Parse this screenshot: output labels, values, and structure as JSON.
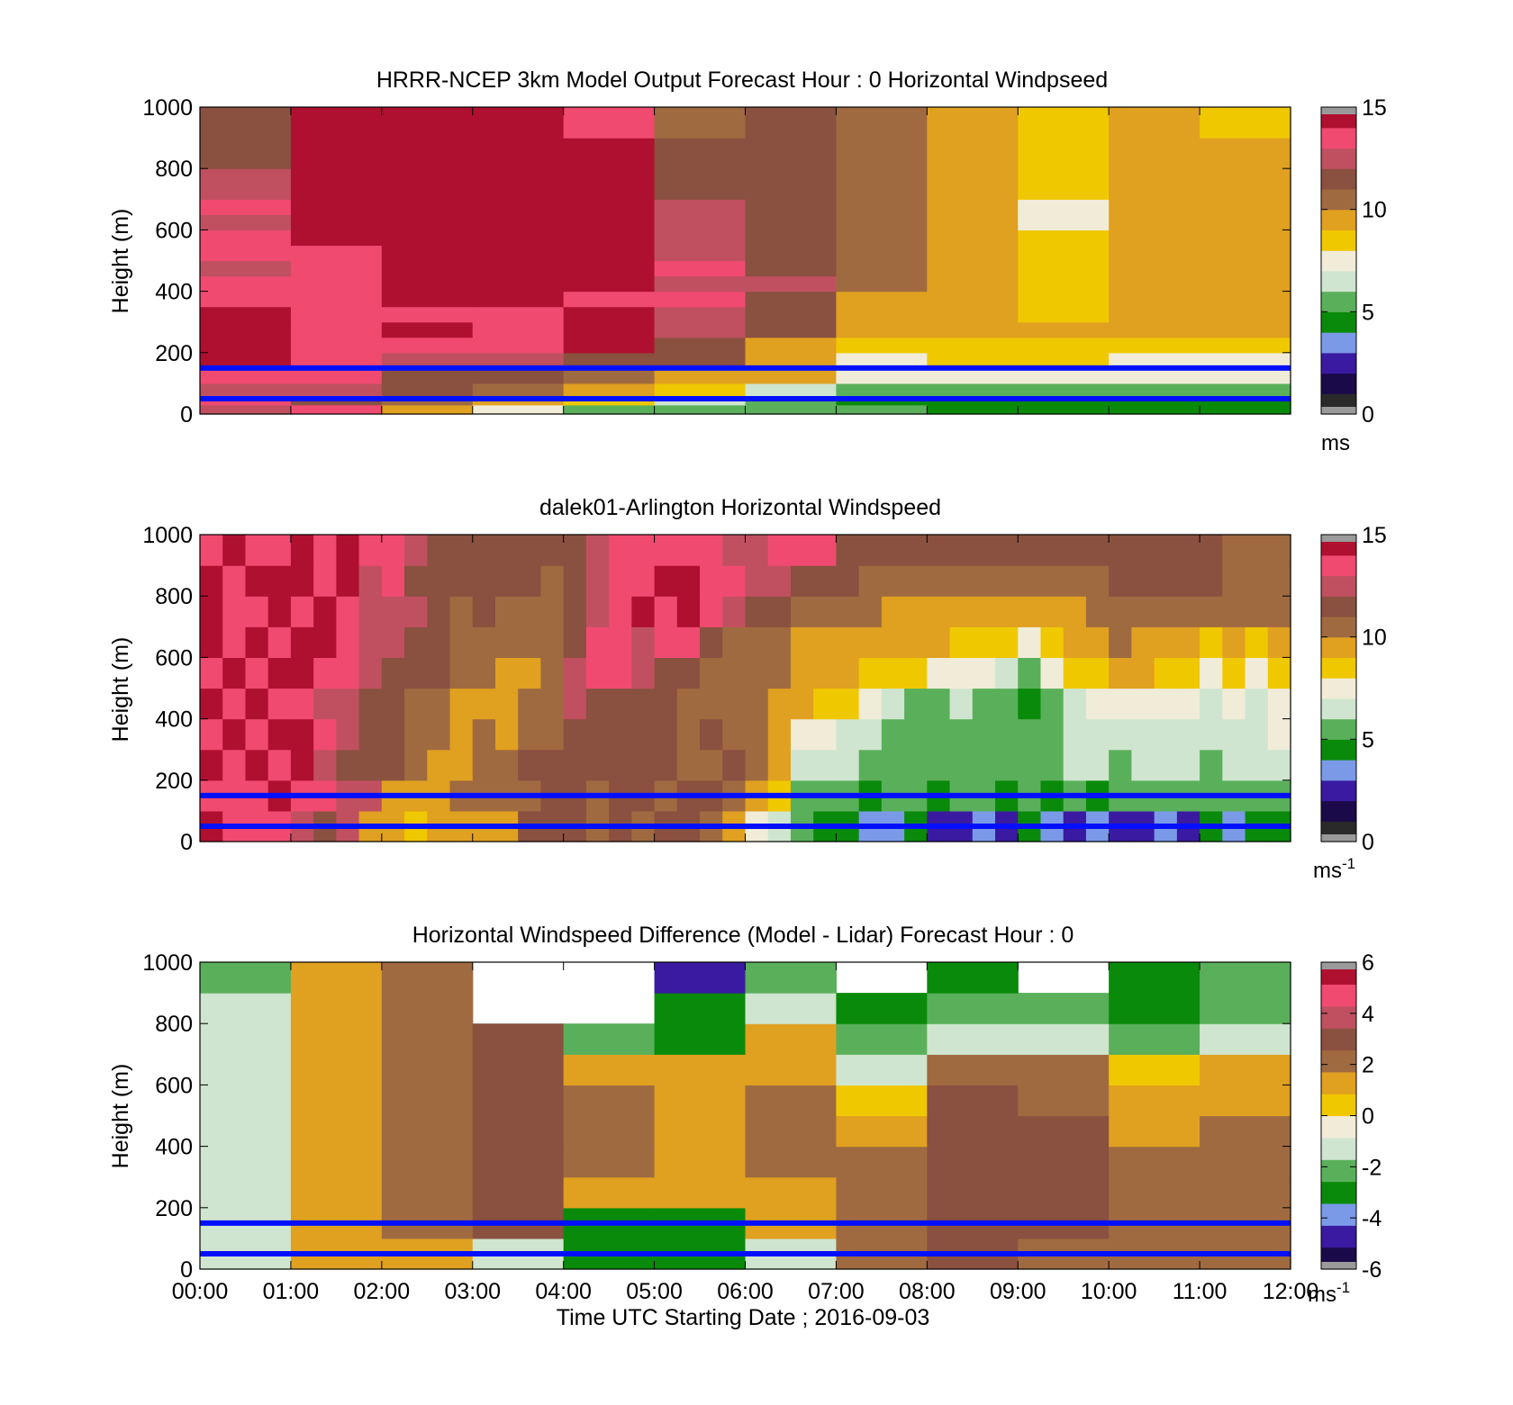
{
  "figure": {
    "xlabel": "Time UTC  Starting Date ; 2016-09-03",
    "x_ticks": [
      "00:00",
      "01:00",
      "02:00",
      "03:00",
      "04:00",
      "05:00",
      "06:00",
      "07:00",
      "08:00",
      "09:00",
      "10:00",
      "11:00",
      "12:00"
    ],
    "y_ticks": [
      "0",
      "200",
      "400",
      "600",
      "800",
      "1000"
    ],
    "ylabel": "Height (m)"
  },
  "colormap": {
    "speed": [
      "#2a2a2a",
      "#1a0a4a",
      "#3a1aa0",
      "#7a9ae8",
      "#0a8a0a",
      "#5ab05a",
      "#cfe5cf",
      "#f0ecd8",
      "#f0c800",
      "#e0a020",
      "#a06a40",
      "#8a5040",
      "#c05060",
      "#f04a70",
      "#b01030"
    ],
    "diff": [
      "#1a0a4a",
      "#3a1aa0",
      "#7a9ae8",
      "#0a8a0a",
      "#5ab05a",
      "#cfe5cf",
      "#f0ecd8",
      "#f0c800",
      "#e0a020",
      "#a06a40",
      "#8a5040",
      "#c05060",
      "#f04a70",
      "#b01030"
    ]
  },
  "chart_data": [
    {
      "type": "heatmap",
      "title": "HRRR-NCEP 3km Model Output   Forecast Hour : 0 Horizontal Windpseed",
      "ylabel": "Height (m)",
      "xlim": [
        "00:00",
        "12:00"
      ],
      "ylim": [
        0,
        1000
      ],
      "colorbar": {
        "min": 0,
        "max": 15,
        "ticks": [
          "0",
          "5",
          "10",
          "15"
        ],
        "unit": "ms",
        "unit_sup": ""
      },
      "reference_lines_m": [
        50,
        150
      ],
      "x_hours": [
        0,
        1,
        2,
        3,
        4,
        5,
        6,
        7,
        8,
        9,
        10,
        11
      ],
      "heights_m": [
        0,
        30,
        60,
        100,
        150,
        200,
        250,
        300,
        350,
        400,
        450,
        500,
        550,
        600,
        650,
        700,
        800,
        900
      ],
      "values": [
        [
          12,
          13,
          9,
          7,
          5,
          5,
          5,
          5,
          4,
          4,
          4,
          4
        ],
        [
          13,
          11,
          10,
          9,
          8,
          6,
          5,
          4,
          4,
          4,
          4,
          4
        ],
        [
          12,
          12,
          11,
          10,
          9,
          8,
          6,
          5,
          5,
          5,
          5,
          5
        ],
        [
          13,
          13,
          11,
          11,
          10,
          9,
          9,
          7,
          7,
          7,
          7,
          7
        ],
        [
          14,
          13,
          12,
          12,
          11,
          11,
          9,
          7,
          8,
          8,
          7,
          7
        ],
        [
          14,
          13,
          13,
          13,
          14,
          11,
          9,
          8,
          8,
          8,
          8,
          8
        ],
        [
          14,
          13,
          14,
          13,
          14,
          12,
          11,
          9,
          9,
          9,
          9,
          9
        ],
        [
          14,
          13,
          13,
          13,
          15,
          12,
          11,
          9,
          9,
          8,
          9,
          9
        ],
        [
          13,
          13,
          14,
          14,
          13,
          13,
          11,
          9,
          9,
          8,
          9,
          9
        ],
        [
          13,
          13,
          14,
          14,
          14,
          12,
          12,
          10,
          9,
          8,
          9,
          9
        ],
        [
          12,
          13,
          14,
          14,
          14,
          13,
          11,
          10,
          9,
          8,
          9,
          9
        ],
        [
          13,
          13,
          14,
          14,
          15,
          12,
          11,
          10,
          9,
          8,
          9,
          9
        ],
        [
          13,
          14,
          14,
          14,
          15,
          12,
          11,
          10,
          9,
          8,
          9,
          9
        ],
        [
          12,
          14,
          14,
          14,
          15,
          12,
          11,
          10,
          9,
          7,
          9,
          9
        ],
        [
          13,
          14,
          14,
          14,
          14,
          12,
          11,
          10,
          9,
          7,
          9,
          9
        ],
        [
          12,
          14,
          14,
          14,
          14,
          11,
          11,
          10,
          9,
          8,
          9,
          9
        ],
        [
          11,
          14,
          14,
          14,
          14,
          11,
          11,
          10,
          9,
          8,
          9,
          9
        ],
        [
          11,
          14,
          14,
          14,
          13,
          10,
          11,
          10,
          9,
          8,
          9,
          8
        ]
      ]
    },
    {
      "type": "heatmap",
      "title": "dalek01-Arlington  Horizontal Windspeed",
      "ylabel": "Height (m)",
      "xlim": [
        "00:00",
        "12:00"
      ],
      "ylim": [
        0,
        1000
      ],
      "colorbar": {
        "min": 0,
        "max": 15,
        "ticks": [
          "0",
          "5",
          "10",
          "15"
        ],
        "unit": "ms",
        "unit_sup": "-1"
      },
      "reference_lines_m": [
        50,
        150
      ],
      "x_hours": [
        0,
        0.25,
        0.5,
        0.75,
        1,
        1.25,
        1.5,
        1.75,
        2,
        2.25,
        2.5,
        2.75,
        3,
        3.25,
        3.5,
        3.75,
        4,
        4.25,
        4.5,
        4.75,
        5,
        5.25,
        5.5,
        5.75,
        6,
        6.25,
        6.5,
        6.75,
        7,
        7.25,
        7.5,
        7.75,
        8,
        8.25,
        8.5,
        8.75,
        9,
        9.25,
        9.5,
        9.75,
        10,
        10.25,
        10.5,
        10.75,
        11,
        11.25,
        11.5,
        11.75
      ],
      "heights_m": [
        0,
        100,
        200,
        300,
        400,
        500,
        600,
        700,
        800,
        900
      ],
      "values": [
        [
          14,
          13,
          13,
          13,
          12,
          11,
          12,
          9,
          9,
          8,
          9,
          9,
          9,
          9,
          11,
          11,
          11,
          10,
          11,
          10,
          11,
          11,
          10,
          9,
          7,
          6,
          5,
          4,
          4,
          3,
          3,
          4,
          2,
          2,
          3,
          2,
          4,
          3,
          2,
          3,
          2,
          2,
          3,
          2,
          4,
          3,
          4,
          4
        ],
        [
          13,
          13,
          13,
          14,
          13,
          13,
          12,
          12,
          9,
          9,
          9,
          10,
          10,
          10,
          10,
          11,
          11,
          10,
          11,
          11,
          10,
          11,
          11,
          10,
          9,
          8,
          5,
          5,
          5,
          4,
          5,
          5,
          4,
          5,
          5,
          4,
          5,
          4,
          5,
          4,
          5,
          5,
          5,
          5,
          5,
          5,
          5,
          5
        ],
        [
          14,
          13,
          14,
          13,
          14,
          12,
          11,
          11,
          11,
          10,
          9,
          9,
          10,
          10,
          11,
          11,
          11,
          11,
          11,
          11,
          11,
          10,
          10,
          11,
          10,
          9,
          6,
          6,
          6,
          5,
          5,
          5,
          5,
          5,
          5,
          5,
          5,
          5,
          6,
          6,
          5,
          6,
          6,
          6,
          5,
          6,
          6,
          6
        ],
        [
          13,
          14,
          13,
          14,
          14,
          13,
          12,
          11,
          11,
          10,
          10,
          9,
          10,
          9,
          10,
          10,
          11,
          11,
          11,
          11,
          11,
          10,
          11,
          10,
          10,
          9,
          7,
          7,
          6,
          6,
          5,
          5,
          5,
          5,
          5,
          5,
          5,
          5,
          6,
          6,
          6,
          6,
          6,
          6,
          6,
          6,
          6,
          7
        ],
        [
          14,
          13,
          14,
          13,
          13,
          12,
          12,
          11,
          11,
          10,
          10,
          9,
          9,
          9,
          10,
          10,
          12,
          11,
          11,
          11,
          11,
          10,
          10,
          10,
          10,
          9,
          9,
          8,
          8,
          7,
          6,
          5,
          5,
          6,
          5,
          5,
          4,
          5,
          6,
          7,
          7,
          7,
          7,
          7,
          6,
          7,
          6,
          7
        ],
        [
          13,
          14,
          13,
          14,
          14,
          13,
          13,
          12,
          11,
          11,
          11,
          10,
          10,
          9,
          9,
          10,
          12,
          13,
          13,
          12,
          11,
          11,
          10,
          10,
          10,
          10,
          9,
          9,
          9,
          8,
          8,
          8,
          7,
          7,
          7,
          6,
          5,
          7,
          8,
          8,
          9,
          9,
          8,
          8,
          7,
          8,
          7,
          8
        ],
        [
          14,
          13,
          14,
          13,
          14,
          14,
          13,
          12,
          12,
          11,
          11,
          10,
          10,
          10,
          10,
          10,
          11,
          13,
          13,
          12,
          13,
          13,
          11,
          10,
          10,
          10,
          9,
          9,
          9,
          9,
          9,
          9,
          9,
          8,
          8,
          8,
          7,
          8,
          9,
          9,
          10,
          9,
          9,
          9,
          8,
          9,
          8,
          9
        ],
        [
          14,
          13,
          13,
          14,
          13,
          14,
          13,
          12,
          12,
          12,
          11,
          10,
          11,
          10,
          10,
          10,
          11,
          12,
          13,
          14,
          13,
          14,
          13,
          12,
          11,
          11,
          10,
          10,
          10,
          10,
          9,
          9,
          9,
          9,
          9,
          9,
          9,
          9,
          9,
          10,
          10,
          10,
          10,
          10,
          10,
          10,
          10,
          10
        ],
        [
          14,
          13,
          14,
          14,
          14,
          13,
          14,
          12,
          13,
          11,
          11,
          11,
          11,
          11,
          11,
          10,
          11,
          12,
          13,
          13,
          14,
          14,
          13,
          13,
          12,
          12,
          11,
          11,
          11,
          10,
          10,
          10,
          10,
          10,
          10,
          10,
          10,
          10,
          10,
          10,
          11,
          11,
          11,
          11,
          11,
          10,
          10,
          10
        ],
        [
          13,
          14,
          13,
          13,
          14,
          13,
          14,
          13,
          13,
          12,
          11,
          11,
          11,
          11,
          11,
          11,
          11,
          12,
          13,
          13,
          13,
          13,
          13,
          12,
          12,
          13,
          13,
          13,
          11,
          11,
          11,
          11,
          11,
          11,
          11,
          11,
          11,
          11,
          11,
          11,
          11,
          11,
          11,
          11,
          11,
          10,
          10,
          10
        ]
      ]
    },
    {
      "type": "heatmap",
      "title": "Horizontal Windspeed Difference (Model - Lidar) Forecast Hour : 0",
      "xlabel": "Time UTC  Starting Date ; 2016-09-03",
      "ylabel": "Height (m)",
      "xlim": [
        "00:00",
        "12:00"
      ],
      "ylim": [
        0,
        1000
      ],
      "colorbar": {
        "min": -6,
        "max": 6,
        "ticks": [
          "-6",
          "-4",
          "-2",
          "0",
          "2",
          "4",
          "6"
        ],
        "unit": "ms",
        "unit_sup": "-1"
      },
      "reference_lines_m": [
        50,
        150
      ],
      "x_hours": [
        0,
        1,
        2,
        3,
        4,
        5,
        6,
        7,
        8,
        9,
        10,
        11
      ],
      "heights_m": [
        0,
        100,
        200,
        300,
        400,
        500,
        600,
        700,
        800,
        900
      ],
      "values": [
        [
          -1,
          1,
          1,
          -1,
          -3,
          -3,
          -1,
          2,
          3,
          2,
          2,
          2
        ],
        [
          -1,
          1,
          2,
          3,
          -3,
          -3,
          1,
          2,
          3,
          3,
          2,
          2
        ],
        [
          -1,
          1,
          2,
          3,
          1,
          1,
          1,
          2,
          3,
          3,
          2,
          2
        ],
        [
          -1,
          1,
          2,
          3,
          2,
          1,
          2,
          2,
          3,
          3,
          2,
          2
        ],
        [
          -1,
          1,
          2,
          3,
          2,
          1,
          2,
          1,
          3,
          3,
          1,
          2
        ],
        [
          -1,
          1,
          2,
          3,
          2,
          1,
          2,
          0,
          3,
          2,
          1,
          1
        ],
        [
          -1,
          1,
          2,
          3,
          1,
          1,
          1,
          -1,
          2,
          2,
          0,
          1
        ],
        [
          -1,
          1,
          2,
          3,
          -2,
          -3,
          1,
          -2,
          -1,
          -1,
          -2,
          -1
        ],
        [
          -1,
          1,
          2,
          null,
          null,
          -3,
          -1,
          -3,
          -2,
          -2,
          -3,
          -2
        ],
        [
          -2,
          1,
          2,
          null,
          null,
          -5,
          -2,
          null,
          -3,
          null,
          -3,
          -2
        ]
      ]
    }
  ]
}
